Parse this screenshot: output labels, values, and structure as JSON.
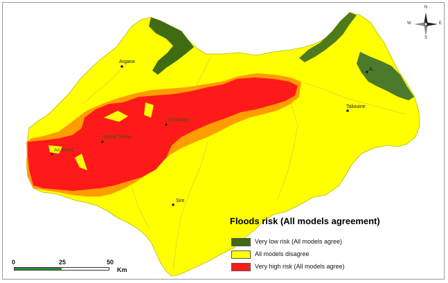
{
  "map": {
    "towns": [
      {
        "id": "argana",
        "label": "Argana"
      },
      {
        "id": "taliouine",
        "label": "Taliouine"
      },
      {
        "id": "aoulouz",
        "label": "A..."
      },
      {
        "id": "sint",
        "label": "Sint"
      },
      {
        "id": "taroudant",
        "label": "Taroudant"
      },
      {
        "id": "ouled-teima",
        "label": "Ouled Teima"
      },
      {
        "id": "ait-amira",
        "label": "Ait Amira"
      }
    ]
  },
  "legend": {
    "title": "Floods risk (All models agreement)",
    "items": [
      {
        "label": "Very low risk (All models agree)",
        "color": "#3f6b12"
      },
      {
        "label": "All models disagree",
        "color": "#ffff00"
      },
      {
        "label": "Very high risk (All models agree)",
        "color": "#ff1a1a"
      }
    ]
  },
  "scale_bar": {
    "ticks": [
      "0",
      "25",
      "50"
    ],
    "unit": "Km"
  },
  "compass": {
    "n": "N",
    "e": "E",
    "s": "S",
    "w": "W"
  }
}
